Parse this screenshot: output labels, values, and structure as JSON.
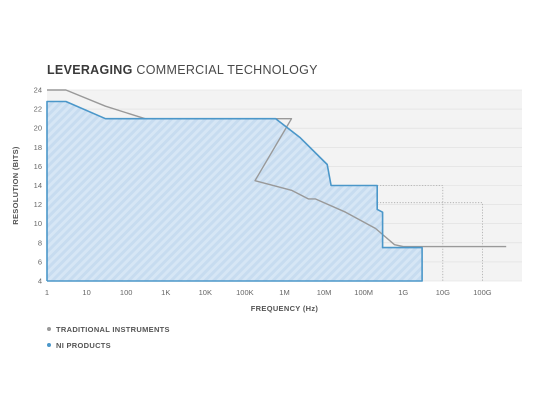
{
  "title_bold": "LEVERAGING",
  "title_rest": " COMMERCIAL TECHNOLOGY",
  "chart_data": {
    "type": "area",
    "title": "LEVERAGING COMMERCIAL TECHNOLOGY",
    "xlabel": "FREQUENCY (Hz)",
    "ylabel": "RESOLUTION (BITS)",
    "x_scale": "log",
    "xlim": [
      1,
      1000000000000
    ],
    "ylim": [
      4,
      24
    ],
    "x_ticks": [
      {
        "value": 1,
        "label": "1"
      },
      {
        "value": 10,
        "label": "10"
      },
      {
        "value": 100,
        "label": "100"
      },
      {
        "value": 1000,
        "label": "1K"
      },
      {
        "value": 10000,
        "label": "10K"
      },
      {
        "value": 100000,
        "label": "100K"
      },
      {
        "value": 1000000,
        "label": "1M"
      },
      {
        "value": 10000000,
        "label": "10M"
      },
      {
        "value": 100000000,
        "label": "100M"
      },
      {
        "value": 1000000000,
        "label": "1G"
      },
      {
        "value": 10000000000,
        "label": "10G"
      },
      {
        "value": 100000000000,
        "label": "100G"
      }
    ],
    "y_ticks": [
      4,
      6,
      8,
      10,
      12,
      14,
      16,
      18,
      20,
      22,
      24
    ],
    "grid": true,
    "legend_position": "bottom-left",
    "series": [
      {
        "name": "TRADITIONAL INSTRUMENTS",
        "color": "#999999",
        "points": [
          [
            1,
            24
          ],
          [
            3,
            24
          ],
          [
            30,
            22.3
          ],
          [
            300,
            21
          ],
          [
            1500000,
            21
          ],
          [
            180000,
            14.5
          ],
          [
            1500000,
            13.5
          ],
          [
            4000000,
            12.6
          ],
          [
            6000000,
            12.6
          ],
          [
            35000000,
            11.2
          ],
          [
            200000000,
            9.5
          ],
          [
            600000000,
            7.8
          ],
          [
            1000000000,
            7.6
          ],
          [
            3000000000,
            7.6
          ],
          [
            400000000000,
            7.6
          ]
        ]
      },
      {
        "name": "NI PRODUCTS",
        "color": "#4b97c9",
        "fill": "#d6e6f5",
        "points": [
          [
            1,
            4
          ],
          [
            1,
            22.8
          ],
          [
            3,
            22.8
          ],
          [
            30,
            21
          ],
          [
            600000,
            21
          ],
          [
            2500000,
            19
          ],
          [
            12000000,
            16.2
          ],
          [
            15000000,
            14
          ],
          [
            220000000,
            14
          ],
          [
            220000000,
            11.5
          ],
          [
            300000000,
            11.2
          ],
          [
            300000000,
            7.5
          ],
          [
            3000000000,
            7.5
          ],
          [
            3000000000,
            4
          ],
          [
            1,
            4
          ]
        ]
      }
    ],
    "reference_lines": [
      {
        "style": "dotted",
        "points": [
          [
            220000000,
            14
          ],
          [
            10000000000,
            14
          ],
          [
            10000000000,
            4
          ]
        ]
      },
      {
        "style": "dotted",
        "points": [
          [
            220000000,
            12.2
          ],
          [
            100000000000,
            12.2
          ],
          [
            100000000000,
            4
          ]
        ]
      }
    ]
  }
}
